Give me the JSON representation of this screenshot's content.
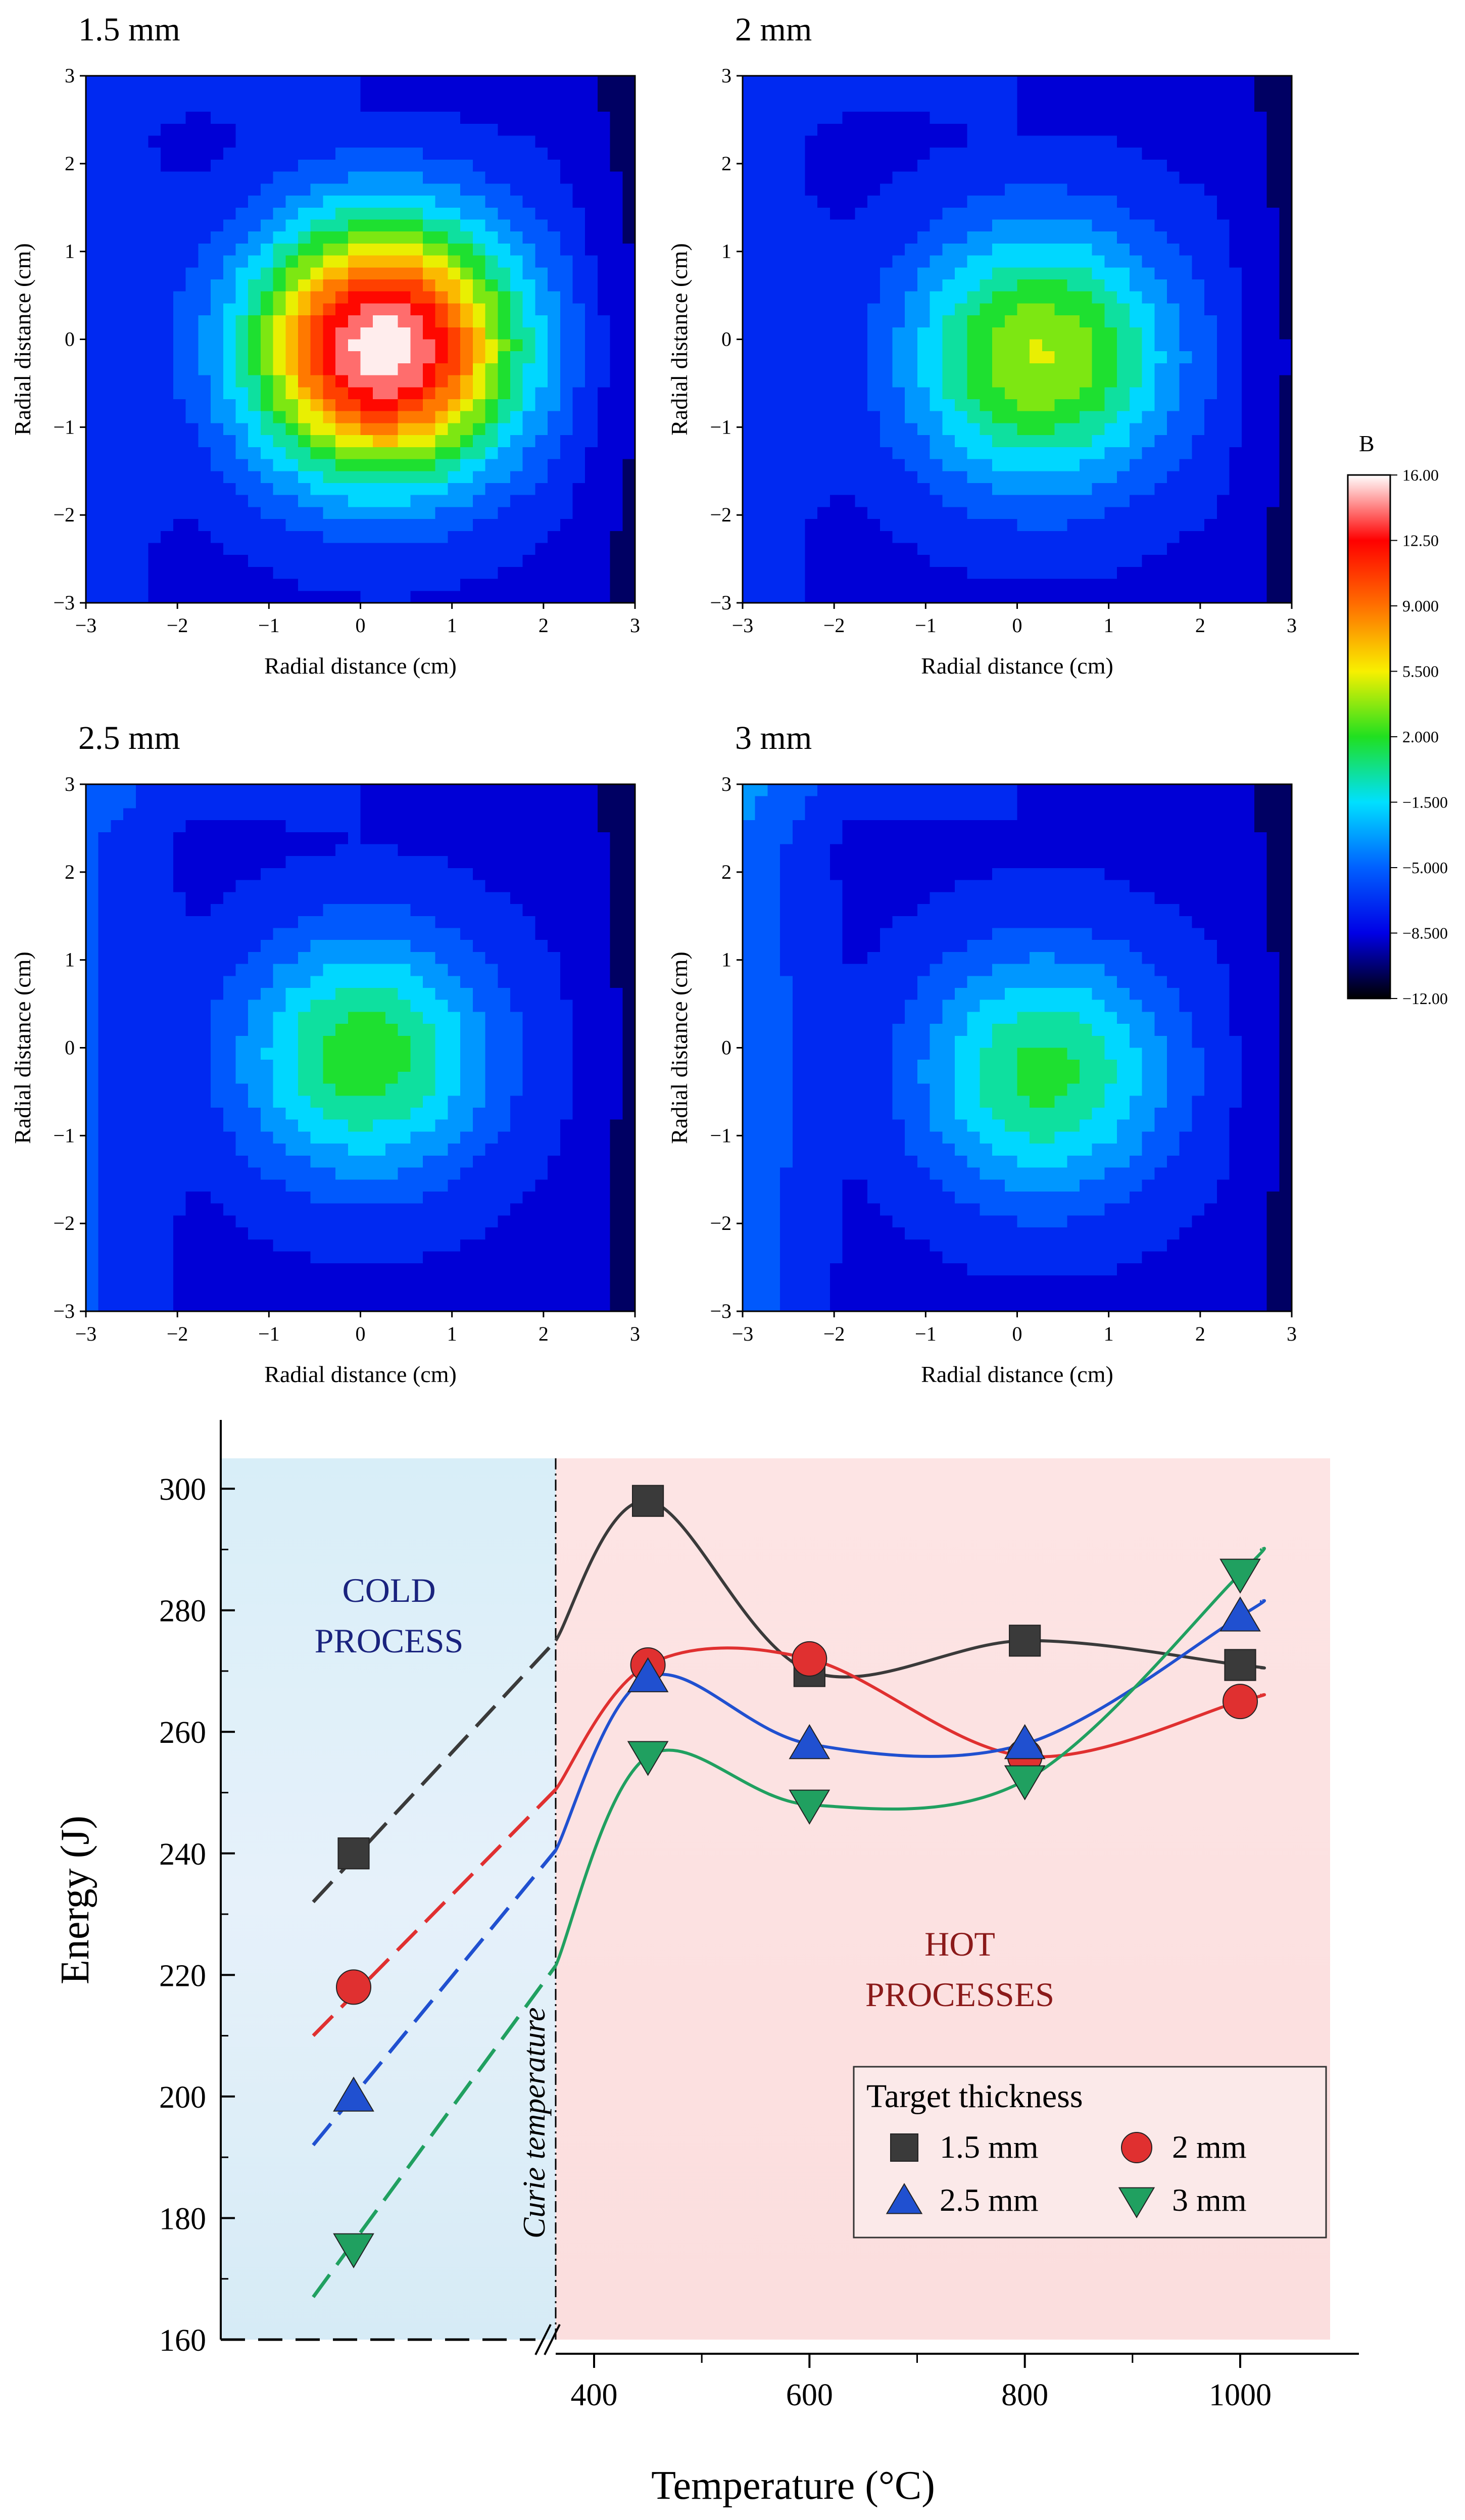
{
  "contour_panels": [
    {
      "title": "1.5 mm",
      "peak": 16.0,
      "cx": 0.25,
      "cy": -0.1,
      "sigma": 1.05,
      "corner_bias": 0.0
    },
    {
      "title": "2 mm",
      "peak": 4.5,
      "cx": 0.25,
      "cy": -0.2,
      "sigma": 1.05,
      "corner_bias": 0.0
    },
    {
      "title": "2.5 mm",
      "peak": 2.0,
      "cx": 0.05,
      "cy": -0.1,
      "sigma": 1.0,
      "corner_bias": 0.5
    },
    {
      "title": "3 mm",
      "peak": 1.5,
      "cx": 0.3,
      "cy": -0.3,
      "sigma": 1.0,
      "corner_bias": 1.0
    }
  ],
  "contour_axes": {
    "xlabel": "Radial distance (cm)",
    "ylabel": "Radial distance (cm)",
    "ticks": [
      "−3",
      "−2",
      "−1",
      "0",
      "1",
      "2",
      "3"
    ],
    "range": [
      -3,
      3
    ]
  },
  "colorbar": {
    "title": "B",
    "ticks": [
      "16.00",
      "12.50",
      "9.000",
      "5.500",
      "2.000",
      "−1.500",
      "−5.000",
      "−8.500",
      "−12.00"
    ],
    "tick_values": [
      16,
      12.5,
      9,
      5.5,
      2,
      -1.5,
      -5,
      -8.5,
      -12
    ],
    "range": [
      -12,
      16
    ],
    "colors": [
      "#000000",
      "#0000e6",
      "#0060ff",
      "#00e0ff",
      "#20e020",
      "#f8f000",
      "#ff7000",
      "#ff0000",
      "#ffffff"
    ]
  },
  "chart_data": {
    "type": "line",
    "xlabel": "Temperature (°C)",
    "ylabel": "Energy (J)",
    "ylim": [
      160,
      305
    ],
    "xlim": [
      360,
      1080
    ],
    "x_ticks": [
      "400",
      "600",
      "800",
      "1000"
    ],
    "y_ticks": [
      "160",
      "180",
      "200",
      "220",
      "240",
      "260",
      "280",
      "300"
    ],
    "cold_label": [
      "COLD",
      "PROCESS"
    ],
    "hot_label": [
      "HOT",
      "PROCESSES"
    ],
    "curie_label": "Curie temperature",
    "legend_title": "Target thickness",
    "legend_position": "bottom-right",
    "series": [
      {
        "name": "1.5 mm",
        "marker": "square",
        "color": "#3a3a3a",
        "cold_value": 240,
        "x": [
          450,
          600,
          800,
          1000
        ],
        "values": [
          298,
          270,
          275,
          271
        ]
      },
      {
        "name": "2 mm",
        "marker": "circle",
        "color": "#e03030",
        "cold_value": 218,
        "x": [
          450,
          600,
          800,
          1000
        ],
        "values": [
          271,
          272,
          256,
          265
        ]
      },
      {
        "name": "2.5 mm",
        "marker": "triangle-up",
        "color": "#2050d0",
        "cold_value": 200,
        "x": [
          450,
          600,
          800,
          1000
        ],
        "values": [
          269,
          258,
          258,
          279
        ]
      },
      {
        "name": "3 mm",
        "marker": "triangle-down",
        "color": "#20a060",
        "cold_value": 175,
        "x": [
          450,
          600,
          800,
          1000
        ],
        "values": [
          256,
          248,
          252,
          286
        ]
      }
    ]
  }
}
